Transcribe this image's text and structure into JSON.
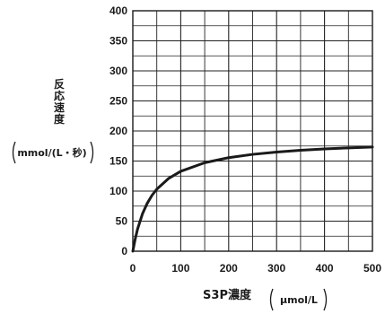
{
  "chart_data": {
    "type": "line",
    "title": "",
    "ylabel": [
      "反",
      "応",
      "速",
      "度"
    ],
    "yunit": "mmol/(L・秒)",
    "xlabel": "S3P濃度",
    "xunit": "μmol/L",
    "xlim": [
      0,
      500
    ],
    "ylim": [
      0,
      400
    ],
    "x_major_ticks": [
      0,
      100,
      200,
      300,
      400,
      500
    ],
    "y_major_ticks": [
      0,
      50,
      100,
      150,
      200,
      250,
      300,
      350,
      400
    ],
    "x_grid_step": 50,
    "y_grid_step": 25,
    "grid": true,
    "legend": "none",
    "series": [
      {
        "color": "#1a1a1a",
        "x": [
          0,
          5,
          10,
          20,
          30,
          40,
          50,
          75,
          100,
          150,
          200,
          250,
          300,
          350,
          400,
          450,
          500
        ],
        "y": [
          0,
          20.5,
          37.1,
          61.9,
          79.6,
          92.9,
          103.2,
          121.2,
          132.9,
          147.2,
          155.6,
          161.1,
          165.0,
          167.9,
          170.1,
          171.9,
          173.3
        ]
      }
    ]
  }
}
